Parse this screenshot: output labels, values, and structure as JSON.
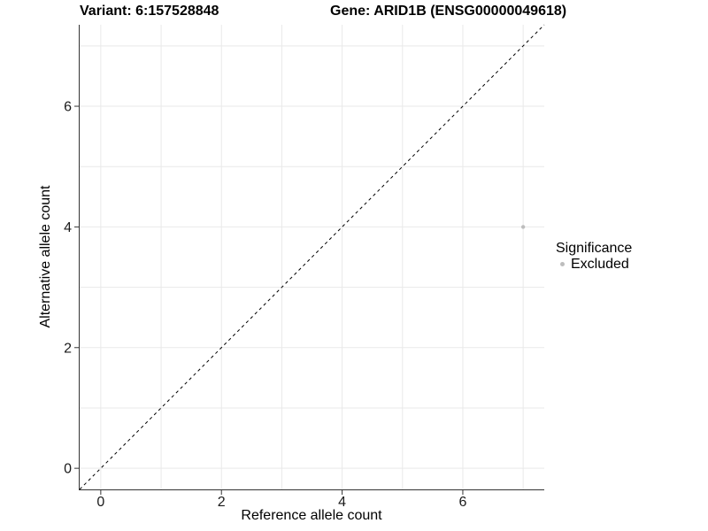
{
  "chart_data": {
    "type": "scatter",
    "titles": {
      "left": "Variant: 6:157528848",
      "right": "Gene: ARID1B (ENSG00000049618)"
    },
    "xlabel": "Reference allele count",
    "ylabel": "Alternative allele count",
    "xlim": [
      -0.35,
      7.35
    ],
    "ylim": [
      -0.35,
      7.35
    ],
    "x_ticks": [
      0,
      2,
      4,
      6
    ],
    "y_ticks": [
      0,
      2,
      4,
      6
    ],
    "x_gridlines": [
      0,
      1,
      2,
      3,
      4,
      5,
      6,
      7
    ],
    "y_gridlines": [
      0,
      1,
      2,
      3,
      4,
      5,
      6,
      7
    ],
    "grid": true,
    "legend_position": "right",
    "reference_line": {
      "type": "identity y=x",
      "style": "dashed",
      "color": "#000000"
    },
    "series": [
      {
        "name": "Excluded",
        "color": "#bdbdbd",
        "points": [
          {
            "x": 7,
            "y": 4
          }
        ]
      }
    ],
    "legend": {
      "title": "Significance",
      "items": [
        {
          "label": "Excluded",
          "color": "#bdbdbd"
        }
      ]
    },
    "colors": {
      "grid": "#e9e9e9",
      "axis": "#333333",
      "tick_text": "#1a1a1a",
      "title_text": "#000000"
    }
  }
}
